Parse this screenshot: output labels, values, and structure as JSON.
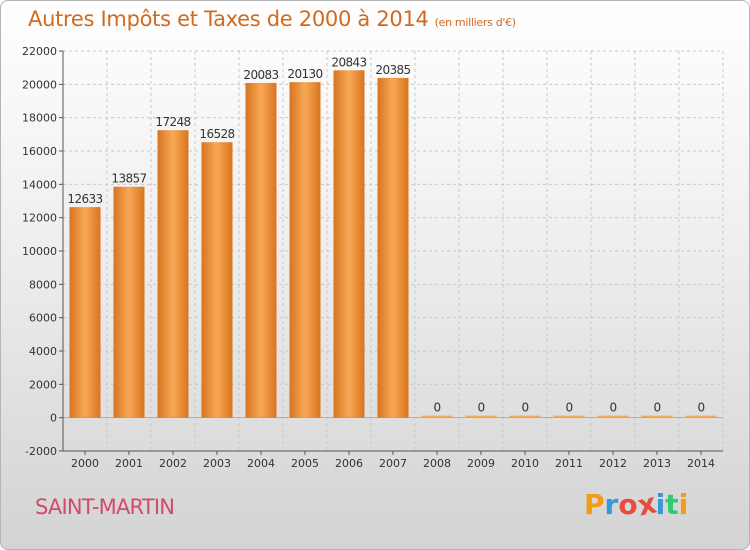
{
  "header": {
    "title": "Autres Impôts et Taxes de 2000 à 2014",
    "unit_note": "(en milliers d'€)"
  },
  "footer": {
    "commune": "SAINT-MARTIN",
    "logo_letters": [
      "P",
      "r",
      "o",
      "x",
      "i",
      "t",
      "i"
    ],
    "logo_colors": [
      "#f39c12",
      "#3498db",
      "#e74c3c",
      "#e74c3c",
      "#3498db",
      "#2ecc71",
      "#f39c12"
    ]
  },
  "colors": {
    "bar_top": "#f7a855",
    "bar_bottom": "#d9741f",
    "title": "#d2691e",
    "commune": "#d14b6b"
  },
  "chart_data": {
    "type": "bar",
    "categories": [
      "2000",
      "2001",
      "2002",
      "2003",
      "2004",
      "2005",
      "2006",
      "2007",
      "2008",
      "2009",
      "2010",
      "2011",
      "2012",
      "2013",
      "2014"
    ],
    "values": [
      12633,
      13857,
      17248,
      16528,
      20083,
      20130,
      20843,
      20385,
      0,
      0,
      0,
      0,
      0,
      0,
      0
    ],
    "title": "Autres Impôts et Taxes de 2000 à 2014",
    "ylim": [
      -2000,
      22000
    ],
    "yticks": [
      -2000,
      0,
      2000,
      4000,
      6000,
      8000,
      10000,
      12000,
      14000,
      16000,
      18000,
      20000,
      22000
    ],
    "grid": true,
    "legend": "none"
  }
}
